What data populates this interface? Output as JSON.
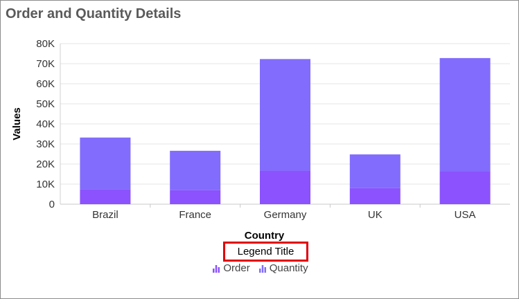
{
  "page": {
    "title": "Order and Quantity Details",
    "legend_title": "Legend Title"
  },
  "colors": {
    "order": "#8b52fd",
    "quantity": "#826cfd",
    "grid": "#e4e4e4",
    "axis_text": "#333333"
  },
  "chart_data": {
    "type": "bar",
    "stacked": true,
    "title": "Order and Quantity Details",
    "xlabel": "Country",
    "ylabel": "Values",
    "categories": [
      "Brazil",
      "France",
      "Germany",
      "UK",
      "USA"
    ],
    "series": [
      {
        "name": "Order",
        "values": [
          7500,
          7000,
          16700,
          8000,
          16400
        ]
      },
      {
        "name": "Quantity",
        "values": [
          25700,
          19600,
          55600,
          16800,
          56400
        ]
      }
    ],
    "ylim": [
      0,
      80000
    ],
    "yticks": [
      {
        "value": 0,
        "label": "0"
      },
      {
        "value": 10000,
        "label": "10K"
      },
      {
        "value": 20000,
        "label": "20K"
      },
      {
        "value": 30000,
        "label": "30K"
      },
      {
        "value": 40000,
        "label": "40K"
      },
      {
        "value": 50000,
        "label": "50K"
      },
      {
        "value": 60000,
        "label": "60K"
      },
      {
        "value": 70000,
        "label": "70K"
      },
      {
        "value": 80000,
        "label": "80K"
      }
    ],
    "grid": true,
    "legend": {
      "title": "Legend Title",
      "position": "bottom"
    }
  }
}
